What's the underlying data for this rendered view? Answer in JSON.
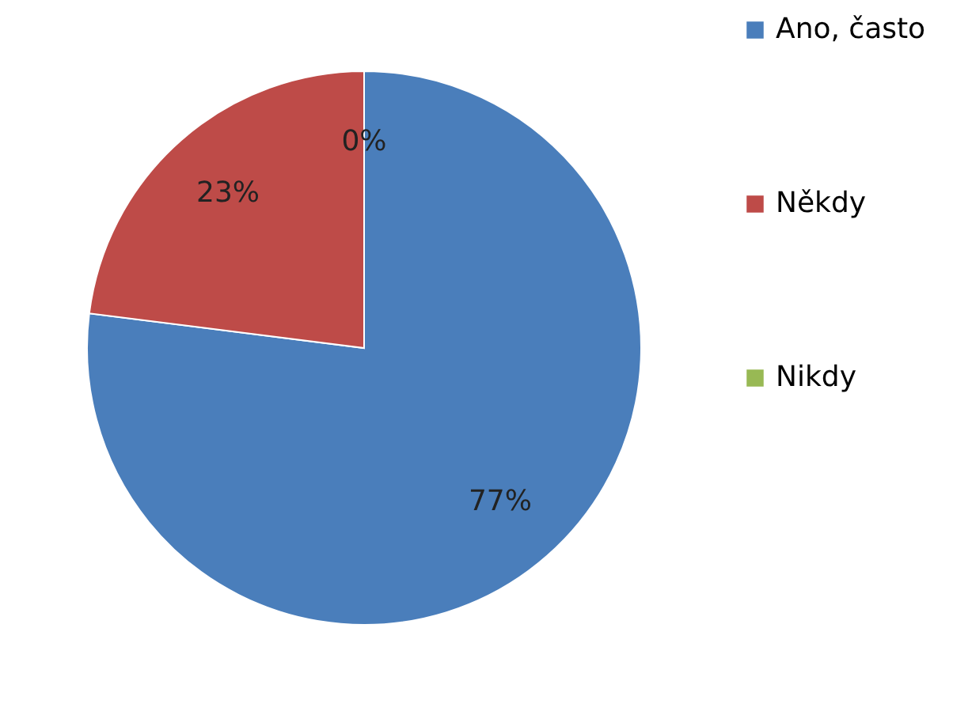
{
  "chart_data": {
    "type": "pie",
    "categories": [
      "Ano, často",
      "Někdy",
      "Nikdy"
    ],
    "values": [
      77,
      23,
      0
    ],
    "colors": [
      "#4a7ebb",
      "#be4b48",
      "#98b954"
    ],
    "value_labels": [
      "77%",
      "23%",
      "0%"
    ],
    "legend": "right"
  }
}
